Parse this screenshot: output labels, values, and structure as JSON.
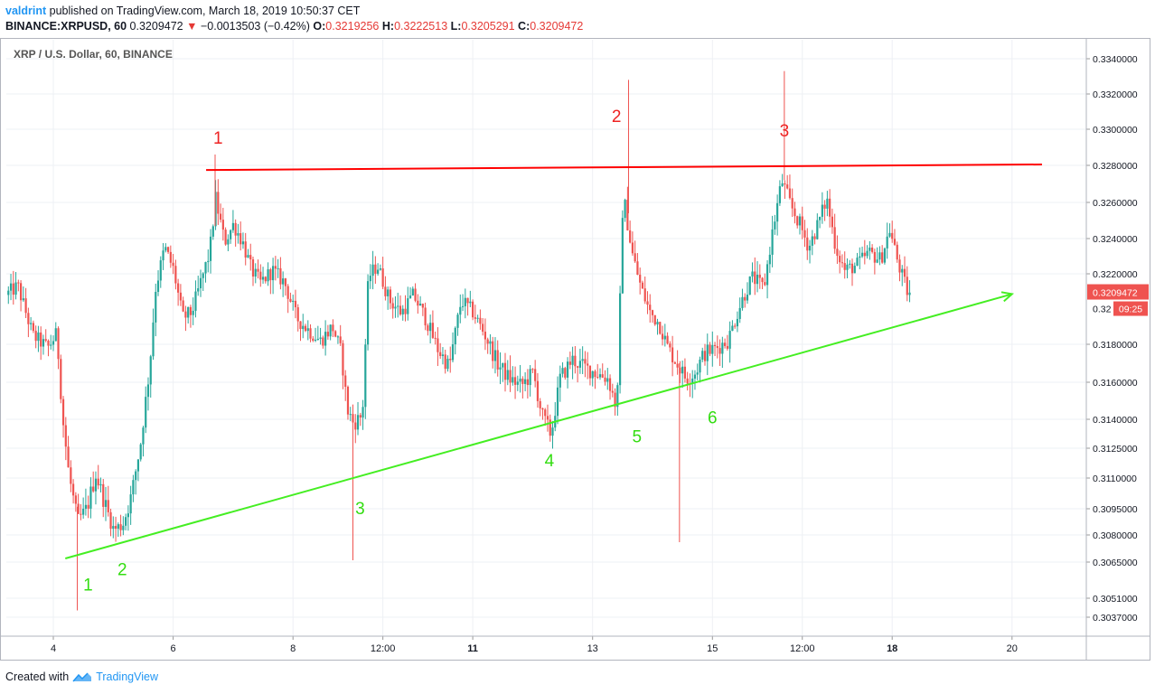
{
  "header": {
    "author": "valdrint",
    "published_text": "published on TradingView.com, March 18, 2019 10:50:37 CET",
    "symbol_interval": "BINANCE:XRPUSD, 60",
    "last_price": "0.3209472",
    "change_arrow": "▼",
    "change": "−0.0013503 (−0.42%)",
    "open_label": "O:",
    "open": "0.3219256",
    "high_label": "H:",
    "high": "0.3222513",
    "low_label": "L:",
    "low": "0.3205291",
    "close_label": "C:",
    "close": "0.3209472"
  },
  "footer": {
    "created_with": "Created with",
    "brand": "TradingView"
  },
  "colors": {
    "up": "#26a69a",
    "down": "#ef5350",
    "resistance": "#ff0000",
    "support": "#44ee22",
    "grid": "#eef0f4",
    "price_label_bg": "#ef5350"
  },
  "chart_data": {
    "type": "candlestick",
    "title": "XRP / U.S. Dollar, 60, BINANCE",
    "y_ticks": [
      0.3037,
      0.3051,
      0.3065,
      0.308,
      0.3095,
      0.311,
      0.3125,
      0.314,
      0.316,
      0.318,
      0.322,
      0.324,
      0.326,
      0.328,
      0.33,
      0.332,
      0.334
    ],
    "y_tick_labels": [
      "0.3037000",
      "0.3051000",
      "0.3065000",
      "0.3080000",
      "0.3095000",
      "0.3110000",
      "0.3125000",
      "0.3140000",
      "0.3160000",
      "0.3180000",
      "0.3220000",
      "0.3240000",
      "0.3260000",
      "0.3280000",
      "0.3300000",
      "0.3320000",
      "0.3340000"
    ],
    "x_ticks": [
      {
        "day": 4,
        "label": "4",
        "bold": false
      },
      {
        "day": 6,
        "label": "6",
        "bold": false
      },
      {
        "day": 8,
        "label": "8",
        "bold": false
      },
      {
        "day": 9.5,
        "label": "12:00",
        "bold": false
      },
      {
        "day": 11,
        "label": "11",
        "bold": true
      },
      {
        "day": 13,
        "label": "13",
        "bold": false
      },
      {
        "day": 15,
        "label": "15",
        "bold": false
      },
      {
        "day": 16.5,
        "label": "12:00",
        "bold": false
      },
      {
        "day": 18,
        "label": "18",
        "bold": true
      },
      {
        "day": 20,
        "label": "20",
        "bold": false
      }
    ],
    "x_range_days": [
      3.22,
      20.5
    ],
    "current_price_label": "0.3209472",
    "price_label_partial": "0.32",
    "countdown": "09:25",
    "series": [
      {
        "day": 3.25,
        "price": 0.3208
      },
      {
        "day": 3.45,
        "price": 0.3213
      },
      {
        "day": 3.7,
        "price": 0.3185
      },
      {
        "day": 3.95,
        "price": 0.3178
      },
      {
        "day": 4.1,
        "price": 0.3186
      },
      {
        "day": 4.2,
        "price": 0.314
      },
      {
        "day": 4.3,
        "price": 0.3112
      },
      {
        "day": 4.45,
        "price": 0.3088
      },
      {
        "day": 4.6,
        "price": 0.3095
      },
      {
        "day": 4.75,
        "price": 0.3112
      },
      {
        "day": 4.9,
        "price": 0.3098
      },
      {
        "day": 5.05,
        "price": 0.3083
      },
      {
        "day": 5.2,
        "price": 0.3086
      },
      {
        "day": 5.35,
        "price": 0.3102
      },
      {
        "day": 5.5,
        "price": 0.3128
      },
      {
        "day": 5.65,
        "price": 0.3168
      },
      {
        "day": 5.75,
        "price": 0.3212
      },
      {
        "day": 5.9,
        "price": 0.3235
      },
      {
        "day": 6.05,
        "price": 0.3222
      },
      {
        "day": 6.2,
        "price": 0.3195
      },
      {
        "day": 6.35,
        "price": 0.3198
      },
      {
        "day": 6.5,
        "price": 0.3215
      },
      {
        "day": 6.65,
        "price": 0.3232
      },
      {
        "day": 6.75,
        "price": 0.3262
      },
      {
        "day": 6.9,
        "price": 0.3238
      },
      {
        "day": 7.05,
        "price": 0.3248
      },
      {
        "day": 7.2,
        "price": 0.3238
      },
      {
        "day": 7.35,
        "price": 0.3222
      },
      {
        "day": 7.5,
        "price": 0.3215
      },
      {
        "day": 7.7,
        "price": 0.3222
      },
      {
        "day": 7.9,
        "price": 0.3215
      },
      {
        "day": 8.1,
        "price": 0.3195
      },
      {
        "day": 8.3,
        "price": 0.3188
      },
      {
        "day": 8.5,
        "price": 0.3182
      },
      {
        "day": 8.7,
        "price": 0.319
      },
      {
        "day": 8.85,
        "price": 0.3175
      },
      {
        "day": 8.95,
        "price": 0.3145
      },
      {
        "day": 9.05,
        "price": 0.3138
      },
      {
        "day": 9.2,
        "price": 0.3142
      },
      {
        "day": 9.3,
        "price": 0.3218
      },
      {
        "day": 9.45,
        "price": 0.3225
      },
      {
        "day": 9.65,
        "price": 0.3205
      },
      {
        "day": 9.85,
        "price": 0.3198
      },
      {
        "day": 10.05,
        "price": 0.3208
      },
      {
        "day": 10.25,
        "price": 0.3195
      },
      {
        "day": 10.45,
        "price": 0.3178
      },
      {
        "day": 10.65,
        "price": 0.3168
      },
      {
        "day": 10.85,
        "price": 0.3205
      },
      {
        "day": 11.05,
        "price": 0.3198
      },
      {
        "day": 11.25,
        "price": 0.3185
      },
      {
        "day": 11.45,
        "price": 0.317
      },
      {
        "day": 11.65,
        "price": 0.3162
      },
      {
        "day": 11.85,
        "price": 0.3158
      },
      {
        "day": 12.05,
        "price": 0.3165
      },
      {
        "day": 12.2,
        "price": 0.3142
      },
      {
        "day": 12.35,
        "price": 0.3132
      },
      {
        "day": 12.5,
        "price": 0.3162
      },
      {
        "day": 12.7,
        "price": 0.3172
      },
      {
        "day": 12.9,
        "price": 0.3168
      },
      {
        "day": 13.1,
        "price": 0.3165
      },
      {
        "day": 13.3,
        "price": 0.3162
      },
      {
        "day": 13.45,
        "price": 0.3145
      },
      {
        "day": 13.55,
        "price": 0.3265
      },
      {
        "day": 13.7,
        "price": 0.3232
      },
      {
        "day": 13.85,
        "price": 0.3212
      },
      {
        "day": 14.0,
        "price": 0.3198
      },
      {
        "day": 14.15,
        "price": 0.3192
      },
      {
        "day": 14.3,
        "price": 0.3178
      },
      {
        "day": 14.45,
        "price": 0.317
      },
      {
        "day": 14.6,
        "price": 0.3162
      },
      {
        "day": 14.75,
        "price": 0.3165
      },
      {
        "day": 14.9,
        "price": 0.3175
      },
      {
        "day": 15.1,
        "price": 0.3178
      },
      {
        "day": 15.3,
        "price": 0.3182
      },
      {
        "day": 15.5,
        "price": 0.3202
      },
      {
        "day": 15.7,
        "price": 0.3218
      },
      {
        "day": 15.9,
        "price": 0.3212
      },
      {
        "day": 16.05,
        "price": 0.3245
      },
      {
        "day": 16.2,
        "price": 0.3272
      },
      {
        "day": 16.35,
        "price": 0.3258
      },
      {
        "day": 16.5,
        "price": 0.3248
      },
      {
        "day": 16.65,
        "price": 0.3235
      },
      {
        "day": 16.8,
        "price": 0.3248
      },
      {
        "day": 16.95,
        "price": 0.3262
      },
      {
        "day": 17.1,
        "price": 0.3235
      },
      {
        "day": 17.25,
        "price": 0.3222
      },
      {
        "day": 17.45,
        "price": 0.3225
      },
      {
        "day": 17.65,
        "price": 0.3232
      },
      {
        "day": 17.85,
        "price": 0.3228
      },
      {
        "day": 18.0,
        "price": 0.3245
      },
      {
        "day": 18.15,
        "price": 0.3225
      },
      {
        "day": 18.3,
        "price": 0.3209
      }
    ],
    "extreme_wicks": [
      {
        "day": 4.4,
        "low": 0.3042
      },
      {
        "day": 9.0,
        "low": 0.3066
      },
      {
        "day": 13.6,
        "high": 0.3328
      },
      {
        "day": 14.45,
        "low": 0.3076
      },
      {
        "day": 16.2,
        "high": 0.3333
      },
      {
        "day": 6.7,
        "high": 0.3286
      }
    ],
    "resistance_line": {
      "points": [
        {
          "day": 6.55,
          "price": 0.32775
        },
        {
          "day": 20.5,
          "price": 0.32805
        }
      ]
    },
    "support_line": {
      "points": [
        {
          "day": 4.2,
          "price": 0.3067
        },
        {
          "day": 20.0,
          "price": 0.32085
        }
      ]
    },
    "annotations": [
      {
        "text": "1",
        "day": 6.75,
        "price": 0.3292,
        "color": "red"
      },
      {
        "text": "2",
        "day": 13.4,
        "price": 0.3304,
        "color": "red"
      },
      {
        "text": "3",
        "day": 16.2,
        "price": 0.3296,
        "color": "red"
      },
      {
        "text": "1",
        "day": 4.58,
        "price": 0.3054,
        "color": "green"
      },
      {
        "text": "2",
        "day": 5.15,
        "price": 0.306,
        "color": "green"
      },
      {
        "text": "3",
        "day": 9.12,
        "price": 0.3092,
        "color": "green"
      },
      {
        "text": "4",
        "day": 12.28,
        "price": 0.3116,
        "color": "green"
      },
      {
        "text": "5",
        "day": 13.74,
        "price": 0.3128,
        "color": "green"
      },
      {
        "text": "6",
        "day": 15.0,
        "price": 0.3138,
        "color": "green"
      }
    ]
  }
}
